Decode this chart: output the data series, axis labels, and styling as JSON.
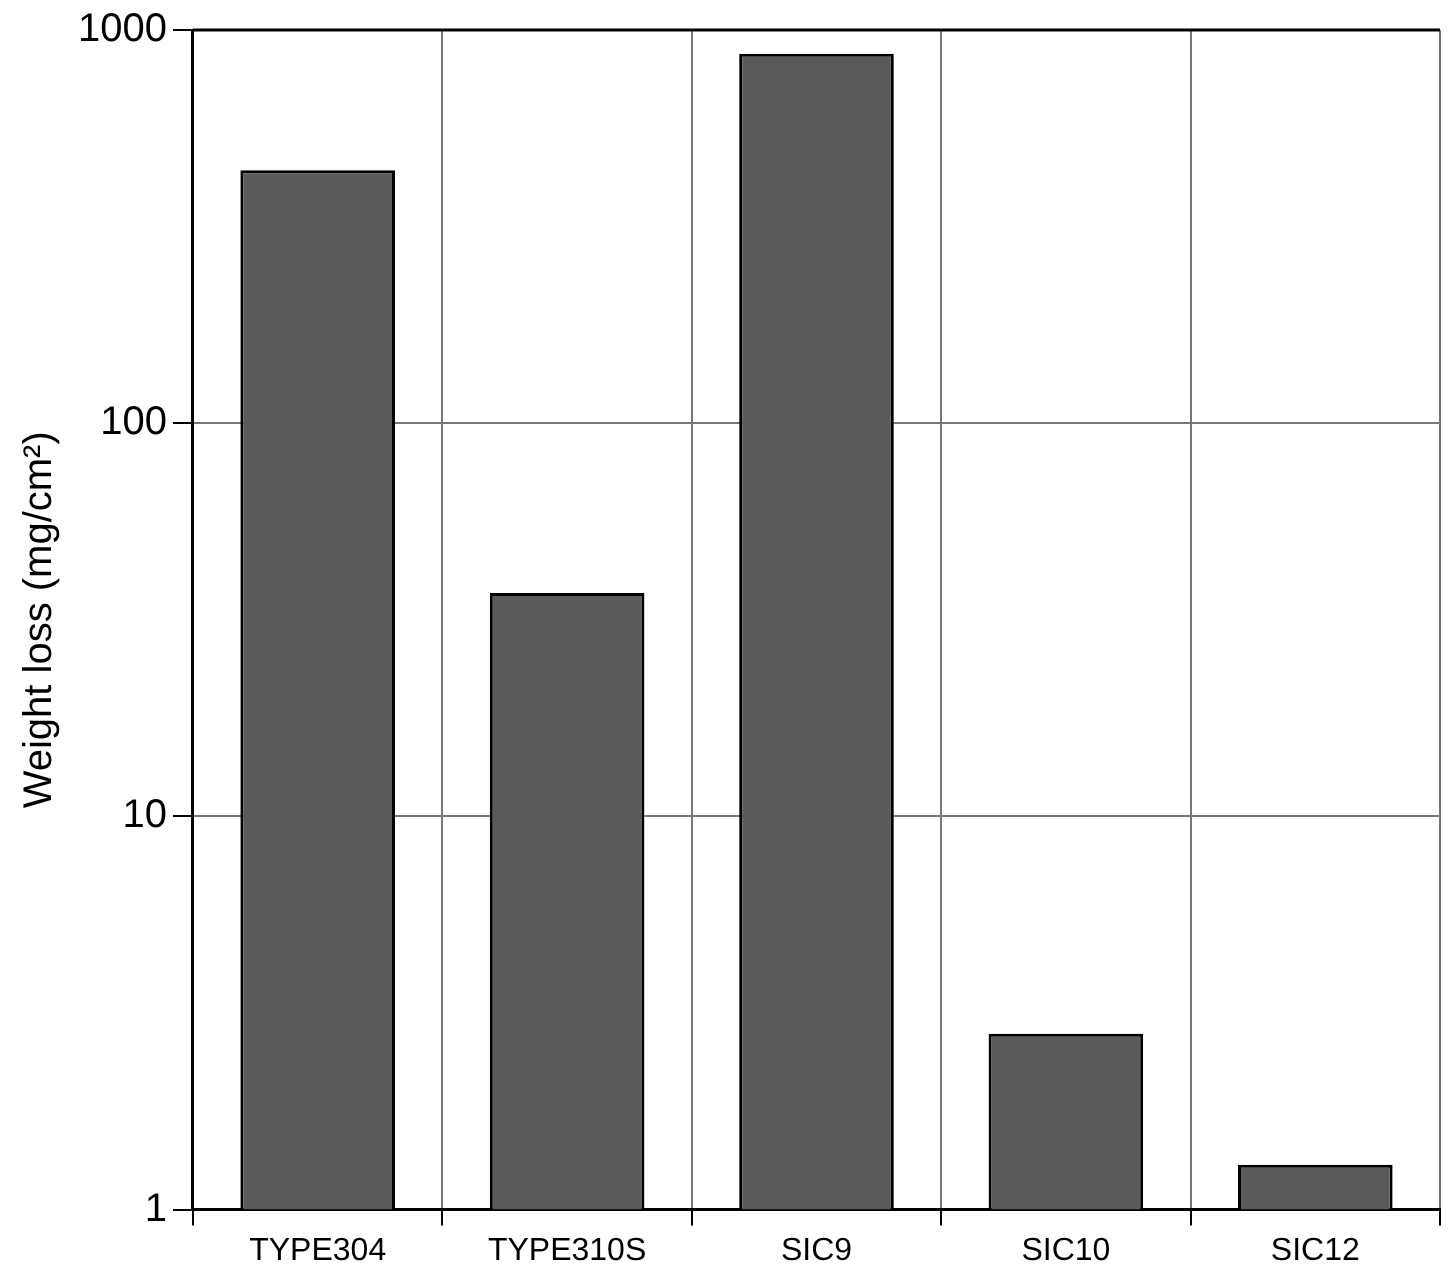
{
  "chart_data": {
    "type": "bar",
    "ylabel": "Weight loss (mg/cm²)",
    "categories": [
      "TYPE304",
      "TYPE310S",
      "SIC9",
      "SIC10",
      "SIC12"
    ],
    "values": [
      440,
      37,
      870,
      2.8,
      1.3
    ],
    "color": "#5a5a5a",
    "ylim": [
      1,
      1000
    ],
    "yticks": [
      1,
      10,
      100,
      1000
    ],
    "log": true,
    "grid": true
  }
}
